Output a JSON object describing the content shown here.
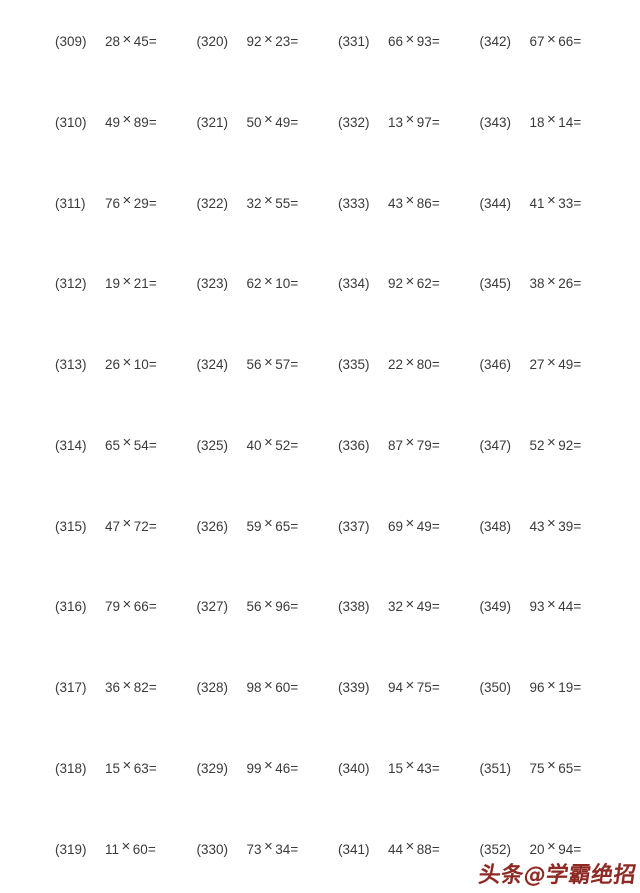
{
  "page": {
    "background": "#ffffff",
    "text_color": "#3a3a3a"
  },
  "symbols": {
    "multiply": "×",
    "equals": "="
  },
  "watermark": {
    "text": "头条@学霸绝招",
    "color": "#8e2a23"
  },
  "columns": [
    {
      "problems": [
        {
          "label": "(309)",
          "a": "28",
          "b": "45"
        },
        {
          "label": "(310)",
          "a": "49",
          "b": "89"
        },
        {
          "label": "(311)",
          "a": "76",
          "b": "29"
        },
        {
          "label": "(312)",
          "a": "19",
          "b": "21"
        },
        {
          "label": "(313)",
          "a": "26",
          "b": "10"
        },
        {
          "label": "(314)",
          "a": "65",
          "b": "54"
        },
        {
          "label": "(315)",
          "a": "47",
          "b": "72"
        },
        {
          "label": "(316)",
          "a": "79",
          "b": "66"
        },
        {
          "label": "(317)",
          "a": "36",
          "b": "82"
        },
        {
          "label": "(318)",
          "a": "15",
          "b": "63"
        },
        {
          "label": "(319)",
          "a": "11",
          "b": "60"
        }
      ]
    },
    {
      "problems": [
        {
          "label": "(320)",
          "a": "92",
          "b": "23"
        },
        {
          "label": "(321)",
          "a": "50",
          "b": "49"
        },
        {
          "label": "(322)",
          "a": "32",
          "b": "55"
        },
        {
          "label": "(323)",
          "a": "62",
          "b": "10"
        },
        {
          "label": "(324)",
          "a": "56",
          "b": "57"
        },
        {
          "label": "(325)",
          "a": "40",
          "b": "52"
        },
        {
          "label": "(326)",
          "a": "59",
          "b": "65"
        },
        {
          "label": "(327)",
          "a": "56",
          "b": "96"
        },
        {
          "label": "(328)",
          "a": "98",
          "b": "60"
        },
        {
          "label": "(329)",
          "a": "99",
          "b": "46"
        },
        {
          "label": "(330)",
          "a": "73",
          "b": "34"
        }
      ]
    },
    {
      "problems": [
        {
          "label": "(331)",
          "a": "66",
          "b": "93"
        },
        {
          "label": "(332)",
          "a": "13",
          "b": "97"
        },
        {
          "label": "(333)",
          "a": "43",
          "b": "86"
        },
        {
          "label": "(334)",
          "a": "92",
          "b": "62"
        },
        {
          "label": "(335)",
          "a": "22",
          "b": "80"
        },
        {
          "label": "(336)",
          "a": "87",
          "b": "79"
        },
        {
          "label": "(337)",
          "a": "69",
          "b": "49"
        },
        {
          "label": "(338)",
          "a": "32",
          "b": "49"
        },
        {
          "label": "(339)",
          "a": "94",
          "b": "75"
        },
        {
          "label": "(340)",
          "a": "15",
          "b": "43"
        },
        {
          "label": "(341)",
          "a": "44",
          "b": "88"
        }
      ]
    },
    {
      "problems": [
        {
          "label": "(342)",
          "a": "67",
          "b": "66"
        },
        {
          "label": "(343)",
          "a": "18",
          "b": "14"
        },
        {
          "label": "(344)",
          "a": "41",
          "b": "33"
        },
        {
          "label": "(345)",
          "a": "38",
          "b": "26"
        },
        {
          "label": "(346)",
          "a": "27",
          "b": "49"
        },
        {
          "label": "(347)",
          "a": "52",
          "b": "92"
        },
        {
          "label": "(348)",
          "a": "43",
          "b": "39"
        },
        {
          "label": "(349)",
          "a": "93",
          "b": "44"
        },
        {
          "label": "(350)",
          "a": "96",
          "b": "19"
        },
        {
          "label": "(351)",
          "a": "75",
          "b": "65"
        },
        {
          "label": "(352)",
          "a": "20",
          "b": "94"
        }
      ]
    }
  ]
}
